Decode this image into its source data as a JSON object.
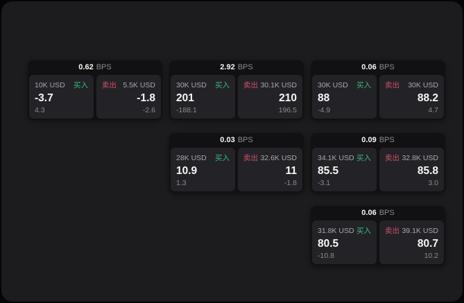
{
  "page": {
    "background": "#050505",
    "panel_background": "#1c1c1e"
  },
  "colors": {
    "buy_green": "#3db77d",
    "sell_red": "#cf4e66",
    "card_bg": "#111113",
    "tile_bg": "#232327",
    "value_text": "#f7f7f7",
    "muted_text": "#8b8b90",
    "label_text": "#a7a7ac"
  },
  "labels": {
    "bps_suffix": "BPS",
    "buy": "买入",
    "sell": "卖出"
  },
  "cards": [
    {
      "bps": "0.62",
      "row": 1,
      "col": 1,
      "buy": {
        "amount": "10K USD",
        "price": "-3.7",
        "change": "4.3"
      },
      "sell": {
        "amount": "5.5K USD",
        "price": "-1.8",
        "change": "-2.6"
      }
    },
    {
      "bps": "2.92",
      "row": 1,
      "col": 2,
      "buy": {
        "amount": "30K USD",
        "price": "201",
        "change": "-188.1"
      },
      "sell": {
        "amount": "30.1K USD",
        "price": "210",
        "change": "196.5"
      }
    },
    {
      "bps": "0.06",
      "row": 1,
      "col": 3,
      "buy": {
        "amount": "30K USD",
        "price": "88",
        "change": "-4.9"
      },
      "sell": {
        "amount": "30K USD",
        "price": "88.2",
        "change": "4.7"
      }
    },
    {
      "bps": "0.03",
      "row": 2,
      "col": 2,
      "buy": {
        "amount": "28K USD",
        "price": "10.9",
        "change": "1.3"
      },
      "sell": {
        "amount": "32.6K USD",
        "price": "11",
        "change": "-1.8"
      }
    },
    {
      "bps": "0.09",
      "row": 2,
      "col": 3,
      "buy": {
        "amount": "34.1K USD",
        "price": "85.5",
        "change": "-3.1"
      },
      "sell": {
        "amount": "32.8K USD",
        "price": "85.8",
        "change": "3.0"
      }
    },
    {
      "bps": "0.06",
      "row": 3,
      "col": 3,
      "buy": {
        "amount": "31.8K USD",
        "price": "80.5",
        "change": "-10.8"
      },
      "sell": {
        "amount": "39.1K USD",
        "price": "80.7",
        "change": "10.2"
      }
    }
  ]
}
